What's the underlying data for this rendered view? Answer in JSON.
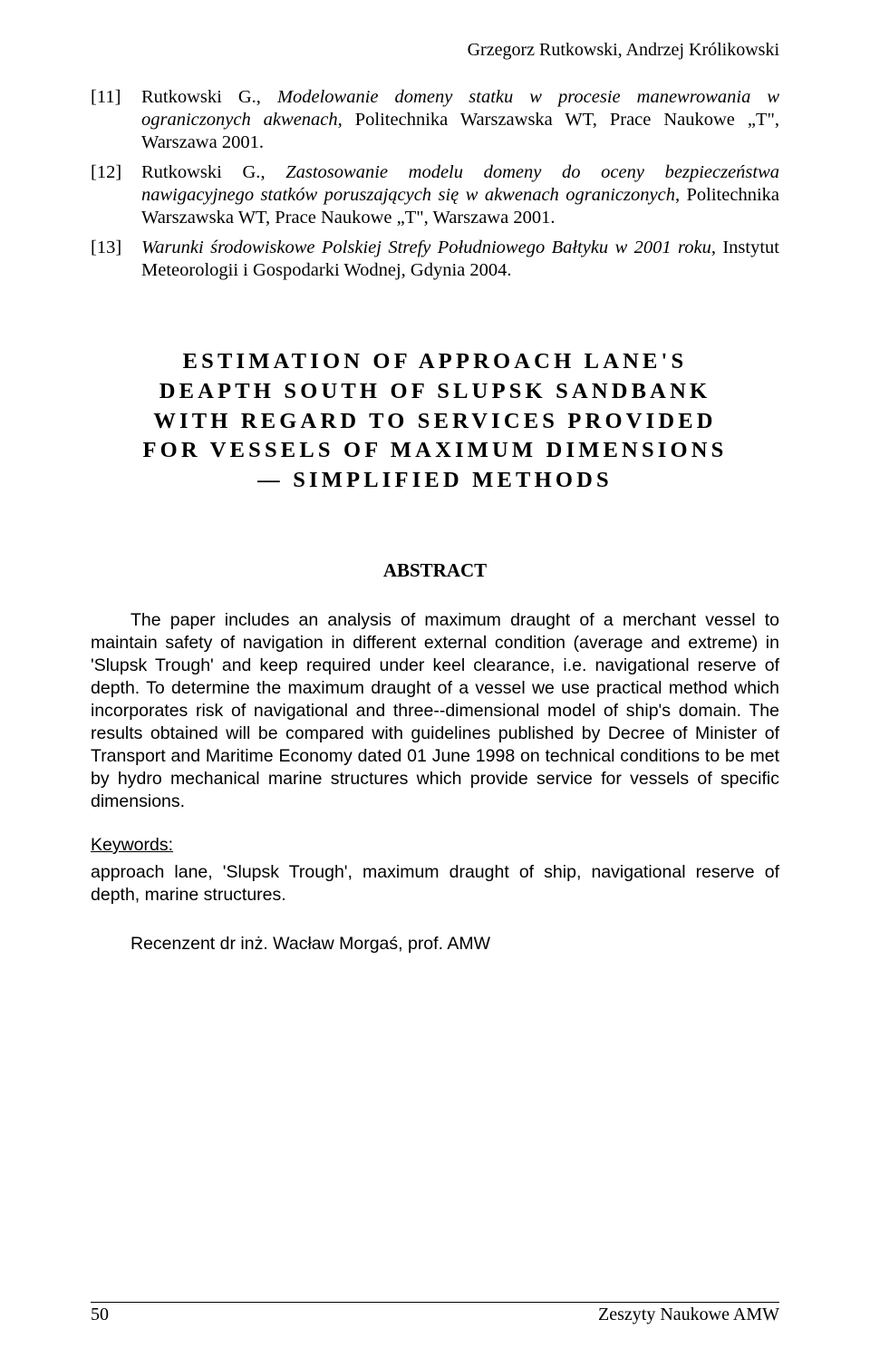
{
  "header": {
    "authors": "Grzegorz Rutkowski, Andrzej Królikowski"
  },
  "references": [
    {
      "num": "[11]",
      "author": "Rutkowski G.",
      "title_italic": "Modelowanie domeny statku w procesie manewrowania w ograniczonych akwenach",
      "tail": ", Politechnika Warszawska WT, Prace Naukowe „T\", Warszawa 2001."
    },
    {
      "num": "[12]",
      "author": "Rutkowski G.",
      "title_italic": "Zastosowanie modelu domeny do oceny bezpieczeństwa nawigacyjnego statków poruszających się w akwenach ograniczonych",
      "tail": ", Politechnika Warszawska WT, Prace Naukowe „T\", Warszawa 2001."
    },
    {
      "num": "[13]",
      "author": "",
      "title_italic": "Warunki środowiskowe Polskiej Strefy Południowego Bałtyku w 2001 roku",
      "tail": ", Instytut Meteorologii i Gospodarki Wodnej, Gdynia 2004."
    }
  ],
  "title": {
    "line1": "ESTIMATION OF APPROACH LANE'S",
    "line2": "DEAPTH SOUTH OF SLUPSK SANDBANK",
    "line3": "WITH REGARD TO SERVICES PROVIDED",
    "line4": "FOR VESSELS OF MAXIMUM DIMENSIONS",
    "line5": "— SIMPLIFIED METHODS"
  },
  "abstract": {
    "heading": "ABSTRACT",
    "body": "The paper includes an analysis of maximum draught of a merchant vessel to maintain safety of navigation in different external condition (average and extreme) in 'Slupsk Trough' and keep required under keel clearance, i.e. navigational reserve of depth. To determine the maximum draught of a vessel we use practical method which incorporates risk of navigational and three-‑dimensional model of ship's domain. The results obtained will be compared with guidelines published by Decree of Minister of Transport and Maritime Economy dated 01 June 1998 on technical conditions to be met by hydro mechanical marine structures which provide service for vessels of specific dimensions."
  },
  "keywords": {
    "label": "Keywords:",
    "body": "approach lane, 'Slupsk Trough', maximum draught of ship, navigational reserve of depth, marine structures."
  },
  "reviewer": "Recenzent dr inż. Wacław Morgaś, prof. AMW",
  "footer": {
    "page": "50",
    "journal": "Zeszyty Naukowe AMW"
  }
}
